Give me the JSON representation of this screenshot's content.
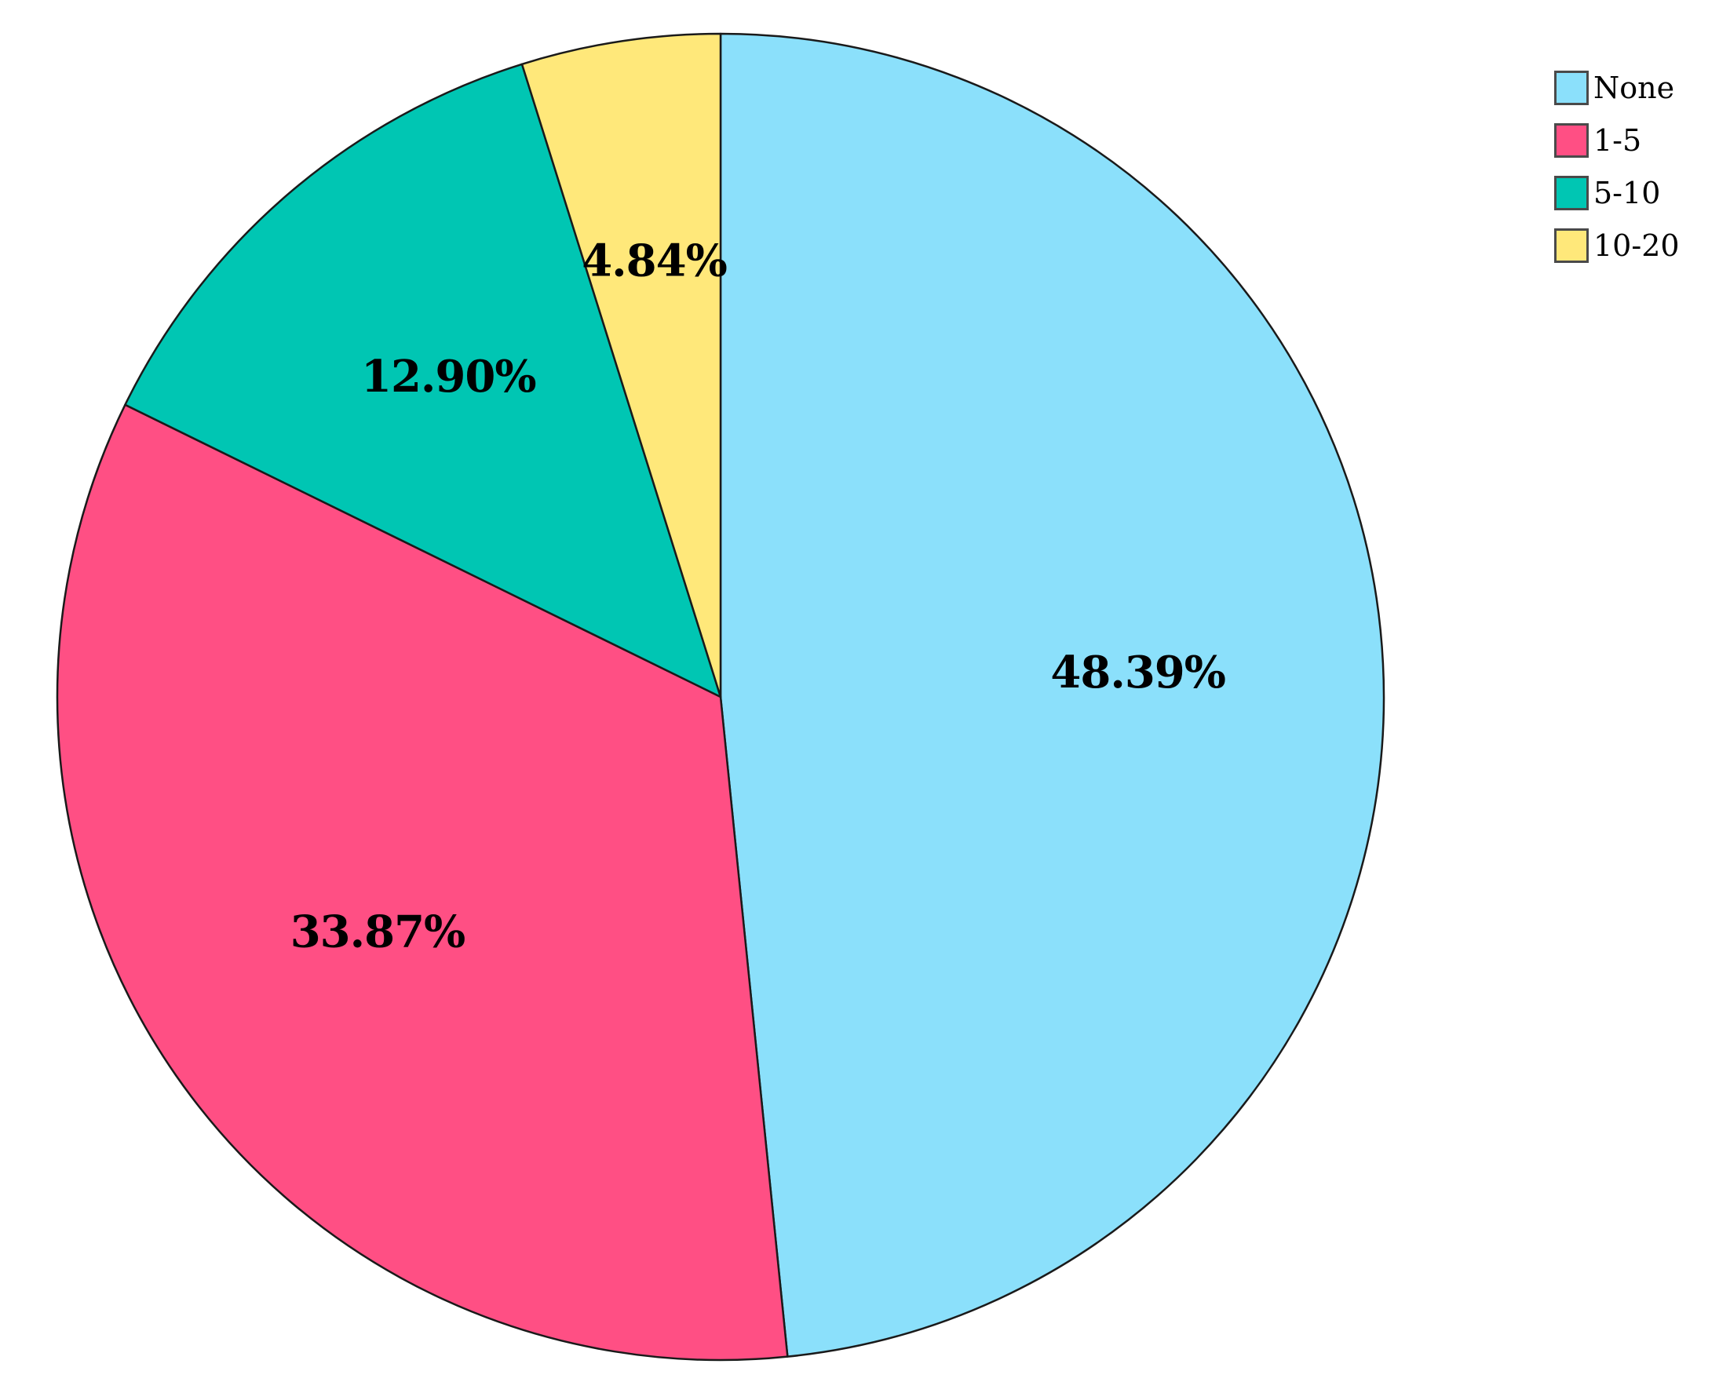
{
  "chart_data": {
    "type": "pie",
    "title": "",
    "slices": [
      {
        "name": "None",
        "value": 48.39,
        "label": "48.39%",
        "color": "#8be0fb"
      },
      {
        "name": "1-5",
        "value": 33.87,
        "label": "33.87%",
        "color": "#ff4f84"
      },
      {
        "name": "5-10",
        "value": 12.9,
        "label": "12.90%",
        "color": "#00c6b3"
      },
      {
        "name": "10-20",
        "value": 4.84,
        "label": "4.84%",
        "color": "#ffe87a"
      }
    ],
    "start_angle": "12 o'clock",
    "direction": "clockwise",
    "legend": {
      "placement": "top-right",
      "entries": [
        "None",
        "1-5",
        "5-10",
        "10-20"
      ]
    }
  }
}
